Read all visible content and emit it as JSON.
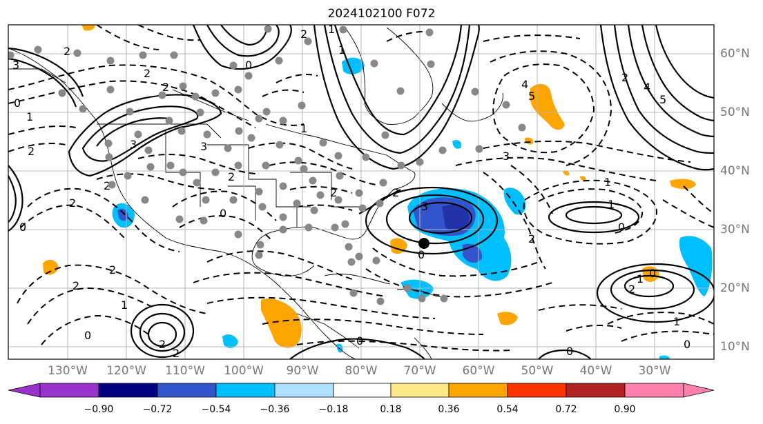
{
  "title": "2024102100 F072",
  "longitude_labels": [
    "130°W",
    "120°W",
    "110°W",
    "100°W",
    "90°W",
    "80°W",
    "70°W",
    "60°W",
    "50°W",
    "40°W",
    "30°W"
  ],
  "latitude_labels": [
    "60°N",
    "50°N",
    "40°N",
    "30°N",
    "20°N",
    "10°N"
  ],
  "colorbar": {
    "ticks": [
      "−0.90",
      "−0.72",
      "−0.54",
      "−0.36",
      "−0.18",
      "0.18",
      "0.36",
      "0.54",
      "0.72",
      "0.90"
    ],
    "colors": [
      "#9933cc",
      "#000080",
      "#3355cc",
      "#00bfff",
      "#b0e0ff",
      "#ffffff",
      "#ffe88a",
      "#ffa500",
      "#ff3300",
      "#b22222",
      "#ff80aa"
    ]
  },
  "map_extent": {
    "lon": [
      -137,
      -16
    ],
    "lat": [
      7.5,
      65
    ]
  },
  "contour_labels": [
    "2",
    "3",
    "2",
    "2",
    "0",
    "1",
    "2",
    "3",
    "2",
    "2",
    "2",
    "2",
    "1",
    "0",
    "2",
    "2",
    "2",
    "0",
    "3",
    "0",
    "1",
    "2",
    "2",
    "1",
    "2",
    "1",
    "0",
    "0",
    "3",
    "4",
    "5",
    "3",
    "4",
    "5",
    "2",
    "1",
    "2",
    "1",
    "0",
    "2",
    "1",
    "0",
    "0",
    "0",
    "0",
    "1"
  ],
  "markers": {
    "dot_color": "#888888",
    "storm_center_color": "#000000"
  }
}
